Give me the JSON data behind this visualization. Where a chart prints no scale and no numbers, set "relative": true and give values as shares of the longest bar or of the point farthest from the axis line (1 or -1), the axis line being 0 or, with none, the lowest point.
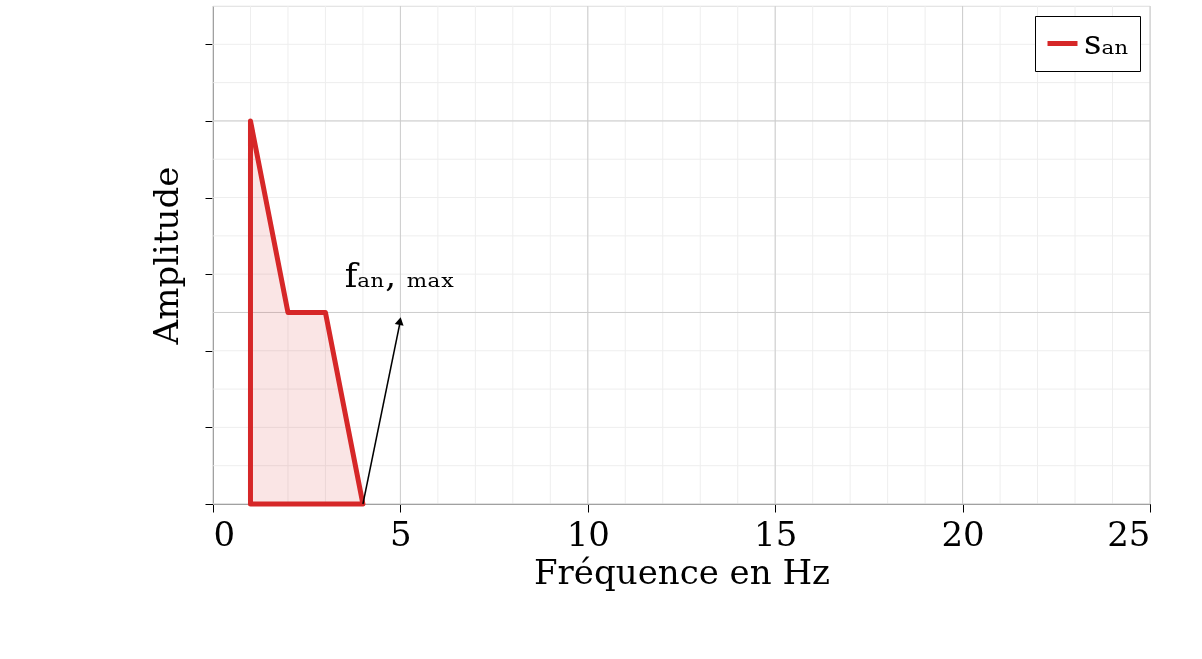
{
  "chart_data": {
    "type": "area",
    "relative": true,
    "xlabel": "Fréquence en Hz",
    "ylabel": "Amplitude",
    "xlim": [
      0,
      25
    ],
    "xticks": [
      0,
      5,
      10,
      15,
      20,
      25
    ],
    "grid": true,
    "legend": "top right",
    "tick_labels": "x",
    "series": [
      {
        "name": "sₐₙ",
        "color": "#d62728",
        "x": [
          1,
          1,
          2,
          3,
          4
        ],
        "values": [
          0,
          1,
          0.5,
          0.5,
          0
        ]
      }
    ],
    "annotations": [
      {
        "text": "fₐₙ, ₘₐₓ",
        "x": 4,
        "y": 0
      }
    ]
  }
}
